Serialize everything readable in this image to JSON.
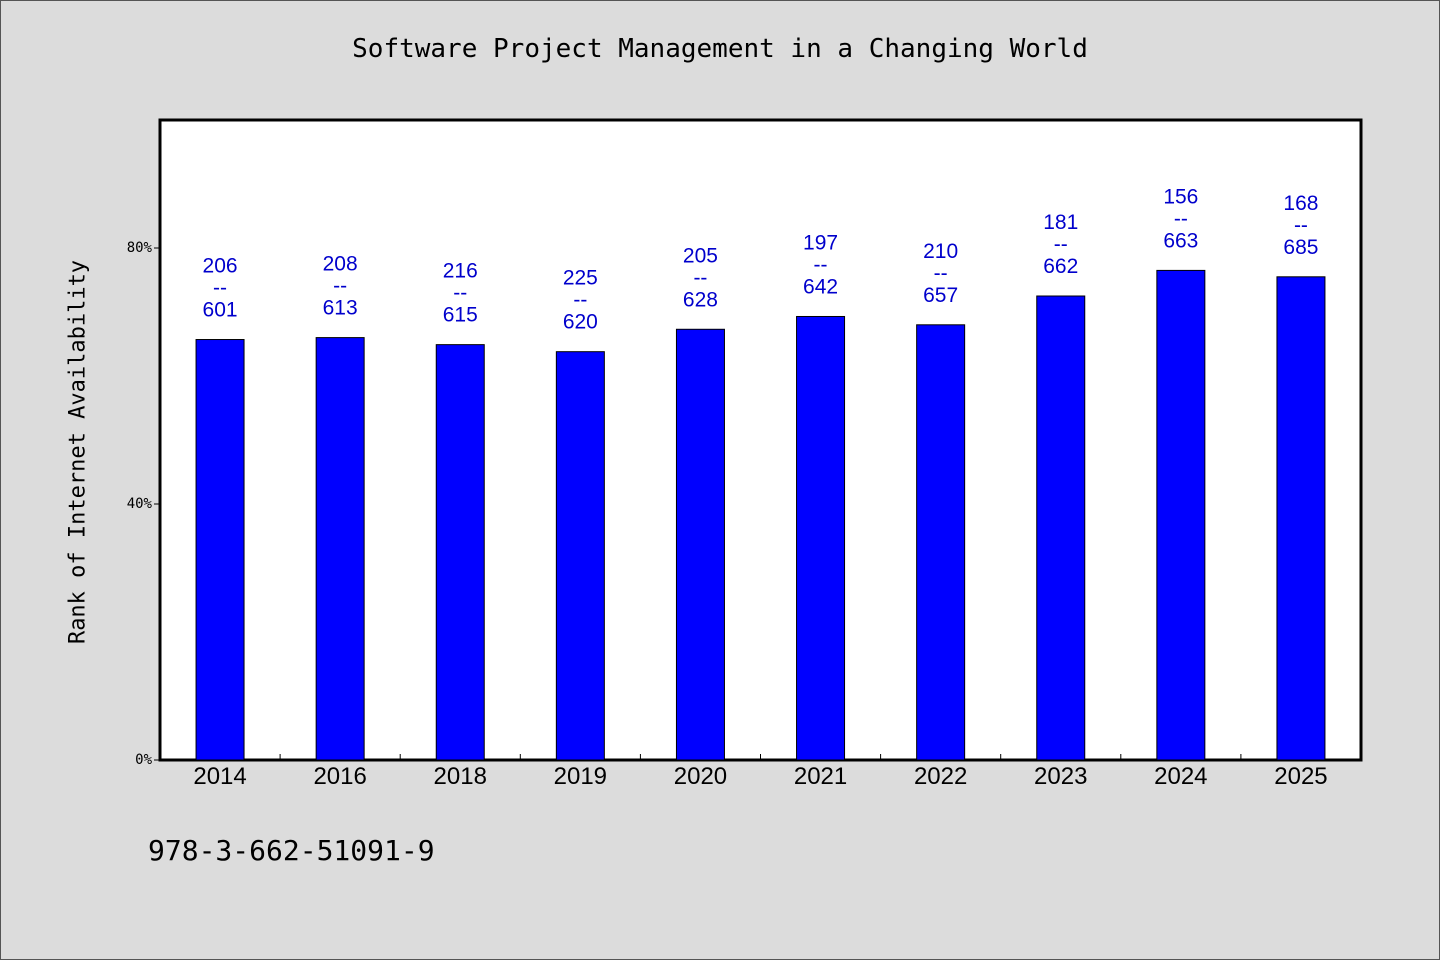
{
  "chart_data": {
    "type": "bar",
    "title": "Software Project Management in a Changing World",
    "xlabel": "",
    "ylabel": "Rank of Internet Availability",
    "categories": [
      "2014",
      "2016",
      "2018",
      "2019",
      "2020",
      "2021",
      "2022",
      "2023",
      "2024",
      "2025"
    ],
    "values": [
      65.7,
      66.0,
      64.9,
      63.8,
      67.3,
      69.3,
      68.0,
      72.5,
      76.5,
      75.5
    ],
    "data_labels": [
      {
        "top": "206",
        "sep": "--",
        "bottom": "601"
      },
      {
        "top": "208",
        "sep": "--",
        "bottom": "613"
      },
      {
        "top": "216",
        "sep": "--",
        "bottom": "615"
      },
      {
        "top": "225",
        "sep": "--",
        "bottom": "620"
      },
      {
        "top": "205",
        "sep": "--",
        "bottom": "628"
      },
      {
        "top": "197",
        "sep": "--",
        "bottom": "642"
      },
      {
        "top": "210",
        "sep": "--",
        "bottom": "657"
      },
      {
        "top": "181",
        "sep": "--",
        "bottom": "662"
      },
      {
        "top": "156",
        "sep": "--",
        "bottom": "663"
      },
      {
        "top": "168",
        "sep": "--",
        "bottom": "685"
      }
    ],
    "ylim": [
      0,
      100
    ],
    "yticks": [
      0,
      40,
      80
    ],
    "ytick_labels": [
      "0%",
      "40%",
      "80%"
    ],
    "bar_color": "#0000ff",
    "label_color": "#0000cc",
    "grid": false
  },
  "footer": {
    "isbn": "978-3-662-51091-9"
  }
}
